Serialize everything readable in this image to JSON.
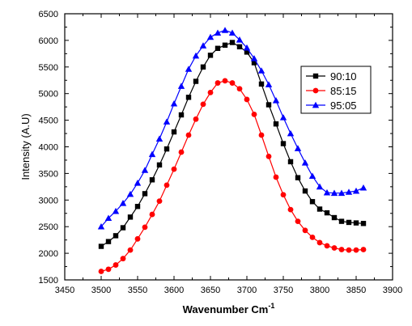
{
  "chart_data": {
    "type": "line",
    "title": "",
    "xlabel": "Wavenumber Cm",
    "xlabel_superscript": "-1",
    "ylabel": "Intensity (A.U)",
    "xlim": [
      3450,
      3900
    ],
    "ylim": [
      1500,
      6500
    ],
    "xticks": [
      3450,
      3500,
      3550,
      3600,
      3650,
      3700,
      3750,
      3800,
      3850,
      3900
    ],
    "yticks": [
      1500,
      2000,
      2500,
      3000,
      3500,
      4000,
      4500,
      5000,
      5500,
      6000,
      6500
    ],
    "x": [
      3500,
      3510,
      3520,
      3530,
      3540,
      3550,
      3560,
      3570,
      3580,
      3590,
      3600,
      3610,
      3620,
      3630,
      3640,
      3650,
      3660,
      3670,
      3680,
      3690,
      3700,
      3710,
      3720,
      3730,
      3740,
      3750,
      3760,
      3770,
      3780,
      3790,
      3800,
      3810,
      3820,
      3830,
      3840,
      3850,
      3860
    ],
    "legend_position": "right",
    "series": [
      {
        "name": "90:10",
        "color": "#000000",
        "marker": "square",
        "values": [
          2130,
          2220,
          2330,
          2480,
          2680,
          2880,
          3120,
          3380,
          3660,
          3960,
          4280,
          4600,
          4930,
          5230,
          5500,
          5720,
          5850,
          5910,
          5960,
          5880,
          5780,
          5580,
          5180,
          4790,
          4430,
          4060,
          3720,
          3420,
          3170,
          2970,
          2830,
          2760,
          2670,
          2600,
          2580,
          2570,
          2560
        ]
      },
      {
        "name": "85:15",
        "color": "#ff0000",
        "marker": "circle",
        "values": [
          1660,
          1700,
          1780,
          1900,
          2060,
          2270,
          2490,
          2730,
          2980,
          3280,
          3580,
          3900,
          4220,
          4520,
          4800,
          5020,
          5200,
          5240,
          5200,
          5090,
          4890,
          4610,
          4220,
          3820,
          3430,
          3100,
          2820,
          2600,
          2430,
          2300,
          2200,
          2140,
          2100,
          2070,
          2060,
          2060,
          2070
        ]
      },
      {
        "name": "95:05",
        "color": "#0000ff",
        "marker": "triangle",
        "values": [
          2500,
          2660,
          2790,
          2940,
          3110,
          3320,
          3560,
          3860,
          4150,
          4470,
          4810,
          5140,
          5460,
          5710,
          5900,
          6060,
          6140,
          6190,
          6140,
          6010,
          5860,
          5660,
          5430,
          5170,
          4870,
          4550,
          4250,
          3970,
          3700,
          3450,
          3250,
          3140,
          3130,
          3130,
          3150,
          3170,
          3230
        ]
      }
    ]
  }
}
